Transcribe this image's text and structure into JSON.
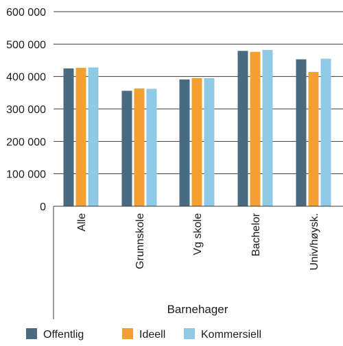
{
  "chart_data": {
    "type": "bar",
    "categories": [
      "Alle",
      "Grunnskole",
      "Vg skole",
      "Bachelor",
      "Univ/høysk."
    ],
    "group_label": "Barnehager",
    "series": [
      {
        "name": "Offentlig",
        "color": "#4a6a80",
        "values": [
          425000,
          356000,
          391000,
          479000,
          453000
        ]
      },
      {
        "name": "Ideell",
        "color": "#f3a031",
        "values": [
          427000,
          363000,
          395000,
          476000,
          414000
        ]
      },
      {
        "name": "Kommersiell",
        "color": "#8ecae6",
        "values": [
          428000,
          362000,
          395000,
          482000,
          455000
        ]
      }
    ],
    "ylim": [
      0,
      600000
    ],
    "yticks": [
      0,
      100000,
      200000,
      300000,
      400000,
      500000,
      600000
    ],
    "ytick_labels": [
      "0",
      "100 000",
      "200 000",
      "300 000",
      "400 000",
      "500 000",
      "600 000"
    ],
    "grid": true,
    "legend_position": "bottom"
  }
}
